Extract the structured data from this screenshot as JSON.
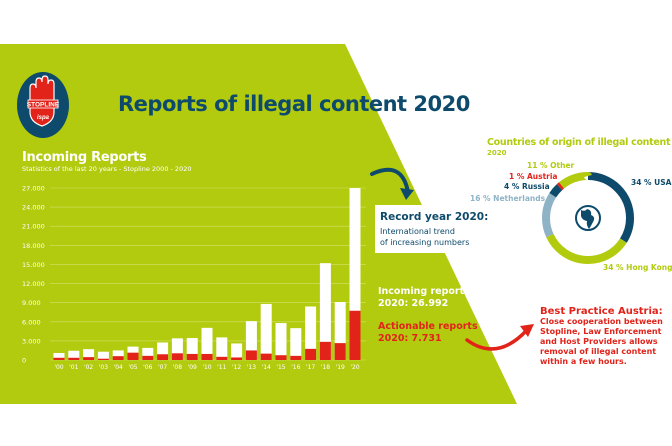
{
  "header": {
    "title": "Reports of illegal content 2020",
    "logo_text": "STOPLINE",
    "logo_subtext": "ispa"
  },
  "colors": {
    "green": "#b2cb0e",
    "navy": "#0d4a6b",
    "red": "#e2231a",
    "light_blue": "#8fb3c6",
    "white": "#ffffff"
  },
  "chart_data": [
    {
      "type": "bar",
      "title": "Incoming Reports",
      "subtitle": "Statistics of the last 20 years - Stopline 2000 - 2020",
      "categories": [
        "'00",
        "'01",
        "'02",
        "'03",
        "'04",
        "'05",
        "'06",
        "'07",
        "'08",
        "'09",
        "'10",
        "'11",
        "'12",
        "'13",
        "'14",
        "'15",
        "'16",
        "'17",
        "'18",
        "'19",
        "'20"
      ],
      "series": [
        {
          "values": [
            1100,
            1450,
            1700,
            1300,
            1500,
            2100,
            1900,
            2750,
            3400,
            3450,
            5050,
            3550,
            2600,
            6100,
            8800,
            5800,
            5000,
            8400,
            15200,
            9100,
            26992
          ],
          "color": "#ffffff"
        },
        {
          "values": [
            350,
            350,
            450,
            200,
            600,
            1150,
            650,
            900,
            1050,
            950,
            950,
            500,
            400,
            1500,
            1000,
            750,
            650,
            1750,
            2850,
            2650,
            7731
          ],
          "color": "#e2231a"
        }
      ],
      "ylim": [
        0,
        27000
      ],
      "yticks": [
        "0",
        "3.000",
        "6.000",
        "9.000",
        "12.000",
        "15.000",
        "18.000",
        "21.000",
        "24.000",
        "27.000"
      ],
      "grid": true
    },
    {
      "type": "pie",
      "title": "Countries of origin of illegal content",
      "subtitle": "2020",
      "slices": [
        {
          "label": "34 % USA",
          "value": 34,
          "color": "#0d4a6b"
        },
        {
          "label": "34 % Hong Kong",
          "value": 34,
          "color": "#b2cb0e"
        },
        {
          "label": "16 % Netherlands",
          "value": 16,
          "color": "#8fb3c6"
        },
        {
          "label": "4 % Russia",
          "value": 4,
          "color": "#0d4a6b"
        },
        {
          "label": "1 % Austria",
          "value": 1,
          "color": "#e2231a"
        },
        {
          "label": "11 % Other",
          "value": 11,
          "color": "#b2cb0e"
        }
      ]
    }
  ],
  "record": {
    "heading": "Record year 2020:",
    "line1": "International trend",
    "line2": "of increasing numbers"
  },
  "stats": {
    "incoming_line1": "Incoming reports",
    "incoming_line2": "2020: 26.992",
    "actionable_line1": "Actionable reports",
    "actionable_line2": "2020: 7.731"
  },
  "best_practice": {
    "heading": "Best Practice Austria:",
    "lines": [
      "Close cooperation between",
      "Stopline, Law Enforcement",
      "and Host Providers allows",
      "removal of illegal content",
      "within a few hours."
    ]
  }
}
